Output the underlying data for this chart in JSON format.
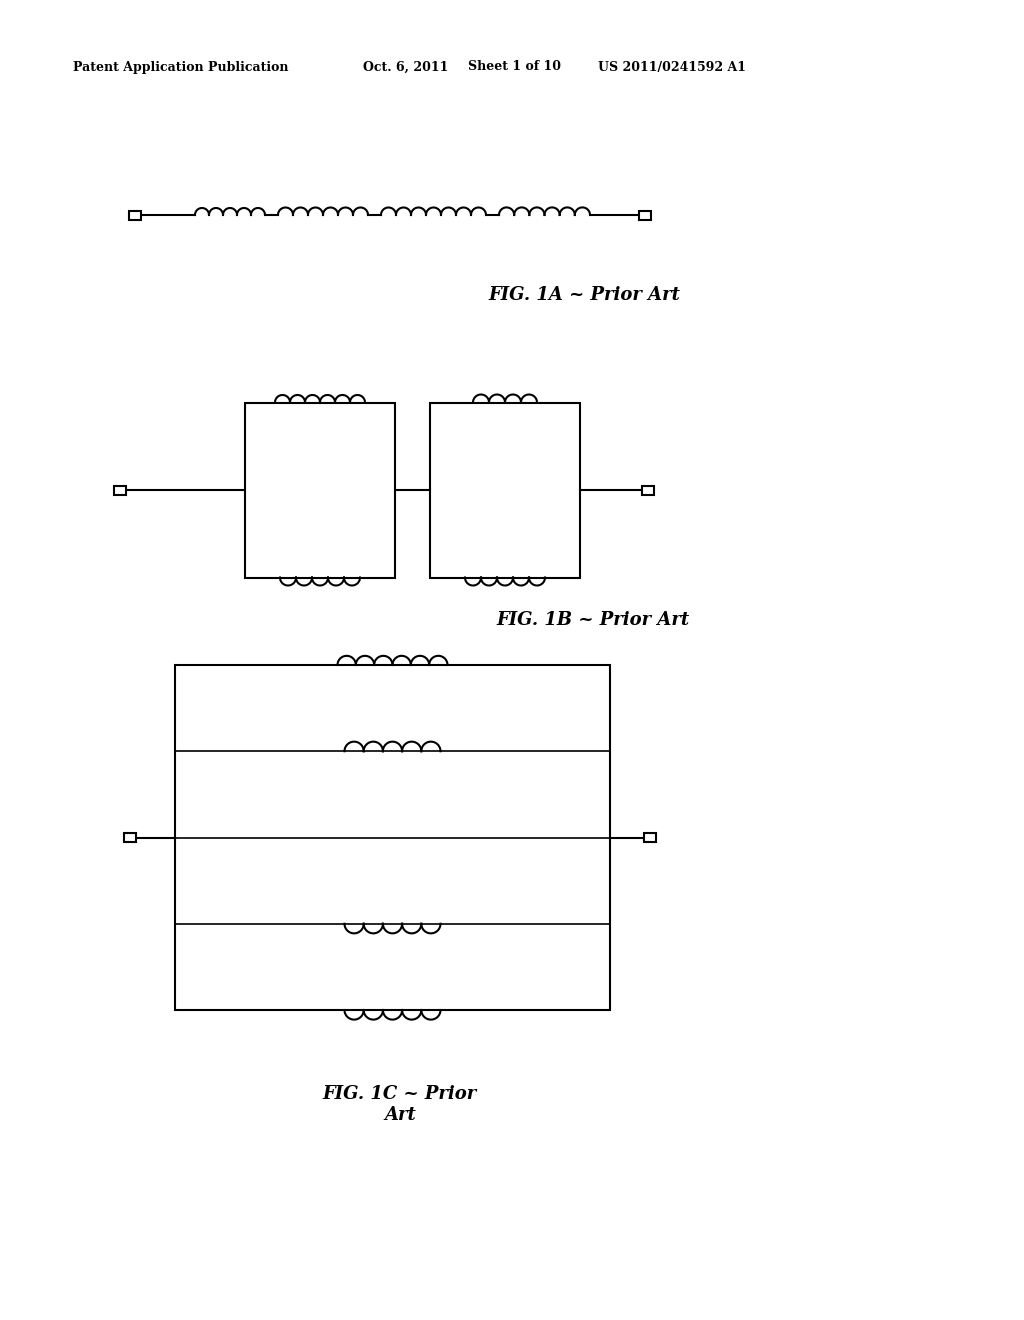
{
  "background_color": "#ffffff",
  "header_text": "Patent Application Publication",
  "header_date": "Oct. 6, 2011",
  "header_sheet": "Sheet 1 of 10",
  "header_patent": "US 2011/0241592 A1",
  "fig1a_label": "FIG. 1A ~ Prior Art",
  "fig1b_label": "FIG. 1B ~ Prior Art",
  "fig1c_label": "FIG. 1C ~ Prior\nArt",
  "line_color": "#000000",
  "line_width": 1.5
}
